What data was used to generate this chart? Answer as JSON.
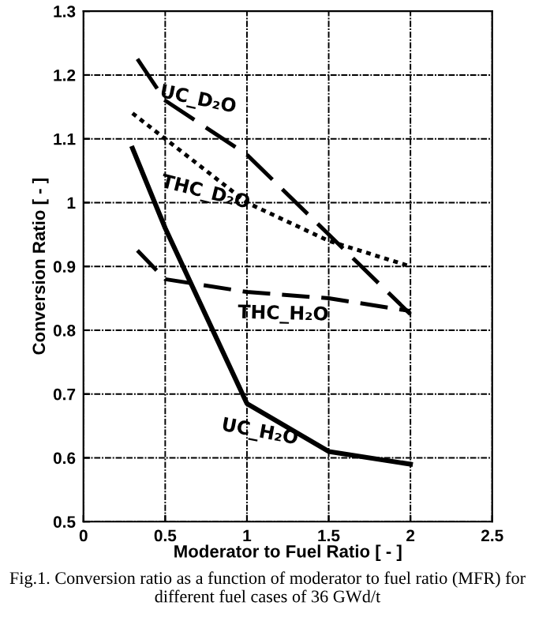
{
  "chart_data": {
    "type": "line",
    "xlabel": "Moderator to Fuel Ratio [ - ]",
    "ylabel": "Conversion Ratio [ - ]",
    "x": [
      0.3,
      0.5,
      1,
      1.5,
      2
    ],
    "series": [
      {
        "name": "UC_D₂O",
        "color": "#000000",
        "line_style": "dashed",
        "x": [
          0.33,
          0.5,
          1,
          1.5,
          2
        ],
        "values": [
          1.225,
          1.16,
          1.075,
          0.95,
          0.825
        ]
      },
      {
        "name": "THC_D₂O",
        "color": "#000000",
        "line_style": "dotted",
        "values": [
          1.14,
          1.1,
          1.0,
          0.94,
          0.9
        ]
      },
      {
        "name": "THC_H₂O",
        "color": "#000000",
        "line_style": "dashed",
        "x": [
          0.33,
          0.5,
          1,
          1.5,
          2
        ],
        "values": [
          0.925,
          0.88,
          0.86,
          0.85,
          0.83
        ]
      },
      {
        "name": "UC_H₂O",
        "color": "#000000",
        "line_style": "solid",
        "values": [
          1.085,
          0.96,
          0.685,
          0.61,
          0.59
        ]
      }
    ],
    "xlim": [
      0,
      2.5
    ],
    "ylim": [
      0.5,
      1.3
    ],
    "xticks": [
      0,
      0.5,
      1,
      1.5,
      2,
      2.5
    ],
    "yticks": [
      0.5,
      0.6,
      0.7,
      0.8,
      0.9,
      1,
      1.1,
      1.2,
      1.3
    ],
    "grid": true,
    "marker": "none",
    "legend": false,
    "annotations": [
      "Fig.1. Conversion ratio as a function of moderator to fuel ratio (MFR) for different fuel cases of 36 GWd/t"
    ]
  }
}
